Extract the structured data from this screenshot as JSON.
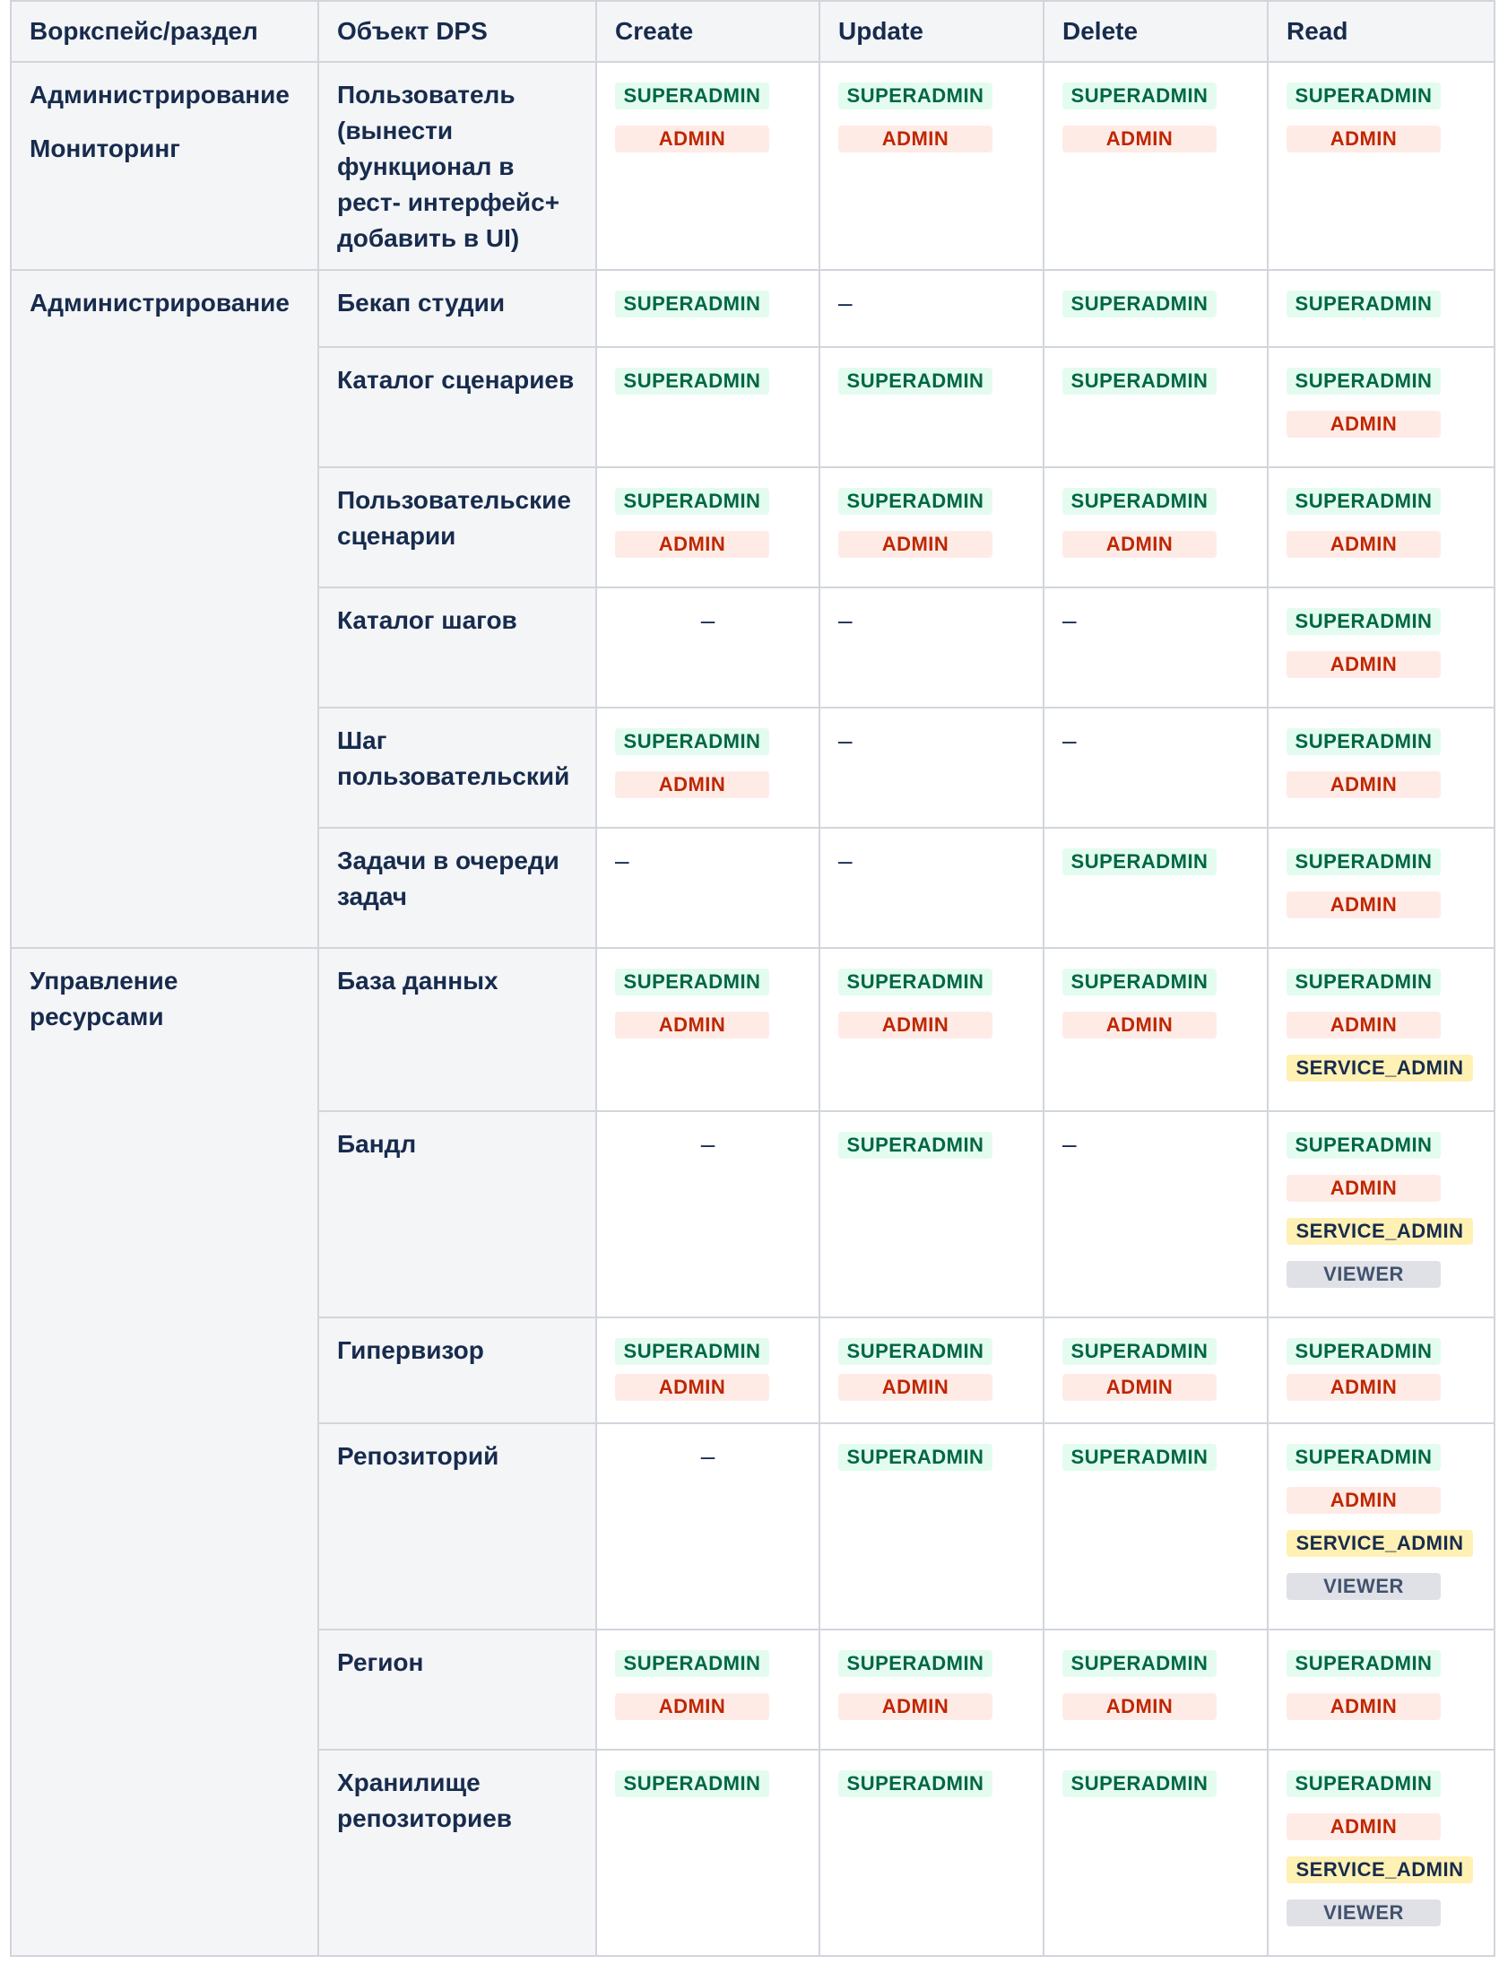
{
  "headers": [
    "Воркспейс/раздел",
    "Объект DPS",
    "Create",
    "Update",
    "Delete",
    "Read"
  ],
  "sections": [
    {
      "names": [
        "Администрирование",
        "Мониторинг"
      ],
      "rows": [
        {
          "object": "Пользователь (вынести функционал в рест- интерфейс+ добавить в UI)",
          "create": [
            "SUPERADMIN",
            "ADMIN"
          ],
          "update": [
            "SUPERADMIN",
            "ADMIN"
          ],
          "delete": [
            "SUPERADMIN",
            "ADMIN"
          ],
          "read": [
            "SUPERADMIN",
            "ADMIN"
          ]
        }
      ]
    },
    {
      "names": [
        "Администрирование"
      ],
      "rows": [
        {
          "object": "Бекап студии",
          "create": [
            "SUPERADMIN"
          ],
          "update": "–",
          "delete": [
            "SUPERADMIN"
          ],
          "read": [
            "SUPERADMIN"
          ]
        },
        {
          "object": "Каталог сценариев",
          "create": [
            "SUPERADMIN"
          ],
          "update": [
            "SUPERADMIN"
          ],
          "delete": [
            "SUPERADMIN"
          ],
          "read": [
            "SUPERADMIN",
            "ADMIN"
          ]
        },
        {
          "object": "Пользовательские сценарии",
          "create": [
            "SUPERADMIN",
            "ADMIN"
          ],
          "update": [
            "SUPERADMIN",
            "ADMIN"
          ],
          "delete": [
            "SUPERADMIN",
            "ADMIN"
          ],
          "read": [
            "SUPERADMIN",
            "ADMIN"
          ]
        },
        {
          "object": "Каталог шагов",
          "create": "–",
          "update": "–",
          "delete": "–",
          "read": [
            "SUPERADMIN",
            "ADMIN"
          ]
        },
        {
          "object": "Шаг пользовательский",
          "create": [
            "SUPERADMIN",
            "ADMIN"
          ],
          "update": "–",
          "delete": "–",
          "read": [
            "SUPERADMIN",
            "ADMIN"
          ]
        },
        {
          "object": "Задачи в очереди задач",
          "create": "–",
          "update": "–",
          "delete": [
            "SUPERADMIN"
          ],
          "read": [
            "SUPERADMIN",
            "ADMIN"
          ]
        }
      ]
    },
    {
      "names": [
        "Управление ресурсами"
      ],
      "rows": [
        {
          "object": "База данных",
          "create": [
            "SUPERADMIN",
            "ADMIN"
          ],
          "update": [
            "SUPERADMIN",
            "ADMIN"
          ],
          "delete": [
            "SUPERADMIN",
            "ADMIN"
          ],
          "read": [
            "SUPERADMIN",
            "ADMIN",
            "SERVICE_ADMIN"
          ]
        },
        {
          "object": "Бандл",
          "create": "–",
          "update": [
            "SUPERADMIN"
          ],
          "delete": "–",
          "read": [
            "SUPERADMIN",
            "ADMIN",
            "SERVICE_ADMIN",
            "VIEWER"
          ]
        },
        {
          "object": "Гипервизор",
          "tight": true,
          "create": [
            "SUPERADMIN",
            "ADMIN"
          ],
          "update": [
            "SUPERADMIN",
            "ADMIN"
          ],
          "delete": [
            "SUPERADMIN",
            "ADMIN"
          ],
          "read": [
            "SUPERADMIN",
            "ADMIN"
          ]
        },
        {
          "object": "Репозиторий",
          "create": "–",
          "update": [
            "SUPERADMIN"
          ],
          "delete": [
            "SUPERADMIN"
          ],
          "read": [
            "SUPERADMIN",
            "ADMIN",
            "SERVICE_ADMIN",
            "VIEWER"
          ]
        },
        {
          "object": "Регион",
          "create": [
            "SUPERADMIN",
            "ADMIN"
          ],
          "update": [
            "SUPERADMIN",
            "ADMIN"
          ],
          "delete": [
            "SUPERADMIN",
            "ADMIN"
          ],
          "read": [
            "SUPERADMIN",
            "ADMIN"
          ]
        },
        {
          "object": "Хранилище репозиториев",
          "create": [
            "SUPERADMIN"
          ],
          "update": [
            "SUPERADMIN"
          ],
          "delete": [
            "SUPERADMIN"
          ],
          "read": [
            "SUPERADMIN",
            "ADMIN",
            "SERVICE_ADMIN",
            "VIEWER"
          ]
        }
      ]
    }
  ]
}
